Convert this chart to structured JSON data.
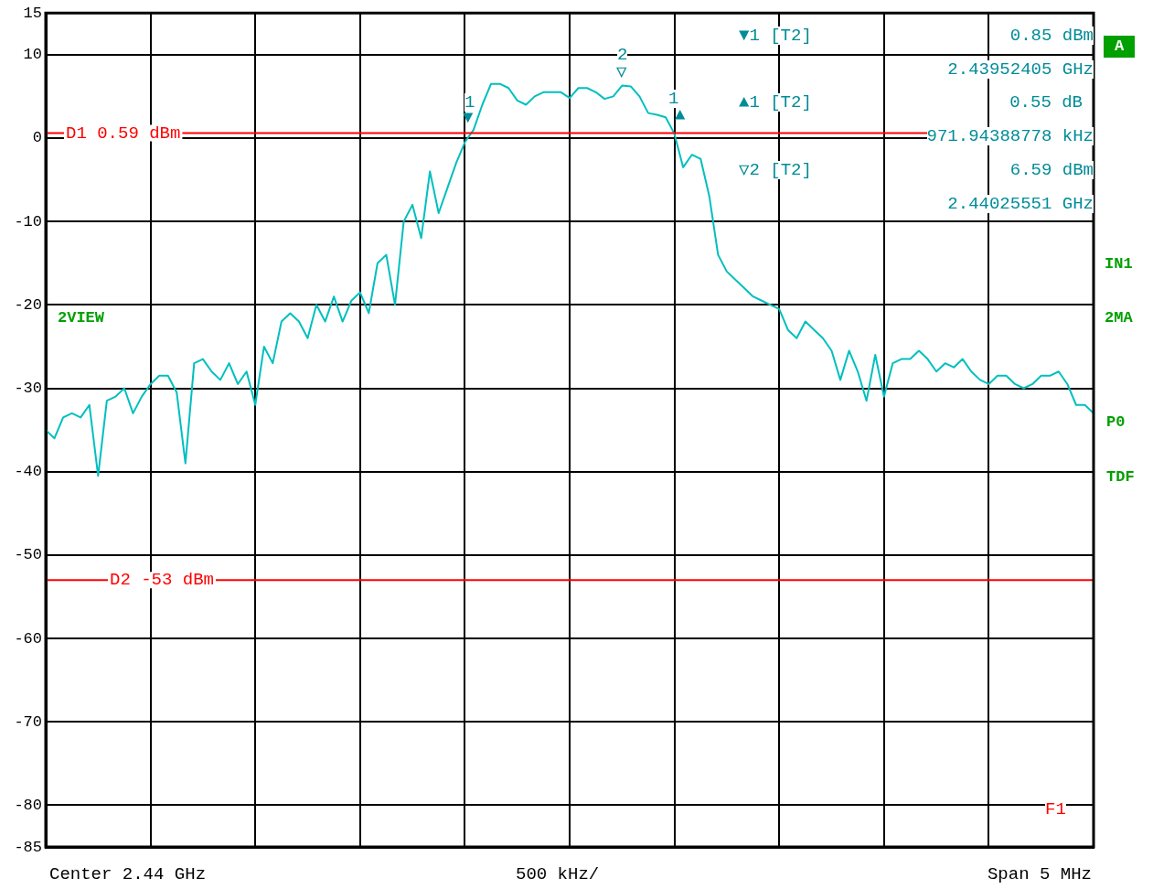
{
  "chart_data": {
    "type": "line",
    "categories": [
      null,
      null,
      null,
      null,
      null,
      null,
      null,
      null,
      null,
      null,
      null,
      null,
      null,
      null,
      null,
      null,
      null,
      null,
      null,
      null,
      null,
      null,
      null,
      null,
      null,
      null,
      null,
      null,
      null,
      null,
      null,
      null,
      null,
      null,
      null,
      null,
      null,
      null,
      null,
      null,
      null,
      null,
      null,
      null,
      null,
      null,
      null,
      null,
      null,
      null,
      null,
      null,
      null,
      null,
      null,
      null,
      null,
      null,
      null,
      null,
      null,
      null,
      null,
      null,
      null,
      null,
      null,
      null,
      null,
      null,
      null,
      null,
      null,
      null,
      null,
      null,
      null,
      null,
      null,
      null,
      null,
      null,
      null,
      null,
      null,
      null,
      null,
      null,
      null,
      null,
      null,
      null,
      null,
      null,
      null,
      null,
      null,
      null,
      null,
      null,
      null,
      null,
      null,
      null,
      null,
      null,
      null,
      null,
      null,
      null,
      null,
      null,
      null,
      null,
      null,
      null,
      null,
      null,
      null,
      null,
      null
    ],
    "series": [
      {
        "color": "#00bfbf",
        "values": [
          -35,
          -36,
          -33.5,
          -33,
          -33.5,
          -32,
          -40.5,
          -31.5,
          -31,
          -30,
          -33,
          -31,
          -29.5,
          -28.5,
          -28.5,
          -30.5,
          -39,
          -27,
          -26.5,
          -28,
          -29,
          -27,
          -29.5,
          -28,
          -32,
          -25,
          -27,
          -22,
          -21,
          -22,
          -24,
          -20,
          -22,
          -19,
          -22,
          -19.5,
          -18.5,
          -21,
          -15,
          -14,
          -20,
          -10,
          -8,
          -12,
          -4,
          -9,
          -6,
          -3,
          -0.5,
          1,
          4,
          6.5,
          6.5,
          6,
          4.5,
          4,
          5,
          5.5,
          5.5,
          5.5,
          4.8,
          6,
          6,
          5.5,
          4.7,
          5,
          6.3,
          6.2,
          5,
          3,
          2.8,
          2.5,
          0.5,
          -3.5,
          -2,
          -2.5,
          -7,
          -14,
          -16,
          -17,
          -18,
          -19,
          -19.5,
          -20,
          -20.5,
          -23,
          -24,
          -22,
          -23,
          -24,
          -25.5,
          -29,
          -25.5,
          -28,
          -31.5,
          -26,
          -31,
          -27,
          -26.5,
          -26.5,
          -25.5,
          -26.5,
          -28,
          -27,
          -27.5,
          -26.5,
          -28,
          -29,
          -29.5,
          -28.5,
          -28.5,
          -29.5,
          -30,
          -29.5,
          -28.5,
          -28.5,
          -28,
          -29.5,
          -32,
          -32,
          -33
        ]
      }
    ],
    "ylim": [
      -85,
      15
    ],
    "yticks": [
      15,
      10,
      0,
      -10,
      -20,
      -30,
      -40,
      -50,
      -60,
      -70,
      -80,
      -85
    ],
    "tick_labels": "y",
    "grid": true,
    "legend": false,
    "marker": "none",
    "line_style": "solid",
    "ref_lines": [
      {
        "axis": "y",
        "value": 0.59,
        "label": "D1 0.59 dBm",
        "color": "#ff0000"
      },
      {
        "axis": "y",
        "value": -53,
        "label": "D2 -53 dBm",
        "color": "#ff0000"
      }
    ],
    "annotations": [
      "▼1 [T2]",
      "0.85 dBm",
      "2.43952405 GHz",
      "▲1 [T2]",
      "0.55 dB",
      "971.94388778 kHz",
      "▽2 [T2]",
      "6.59 dBm",
      "2.44025551 GHz",
      "1",
      "2",
      "1",
      "▼",
      "▽",
      "▲",
      "2VIEW",
      "A",
      "IN1",
      "2MA",
      "P0",
      "TDF",
      "F1",
      "Center 2.44 GHz",
      "500 kHz/",
      "Span 5 MHz"
    ]
  }
}
